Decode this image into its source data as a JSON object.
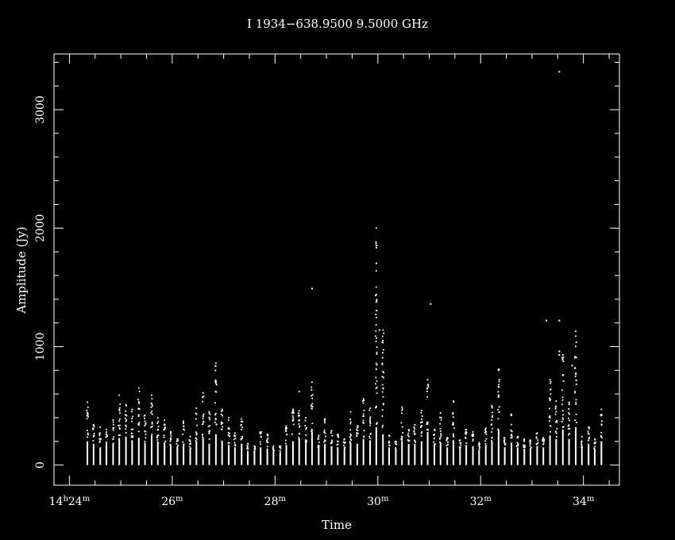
{
  "chart_data": {
    "type": "scatter",
    "title": "I 1934−638.9500  9.5000  GHz",
    "xlabel": "Time",
    "ylabel": "Amplitude (Jy)",
    "x_unit": "minutes after 14h00m",
    "xlim": [
      23.7,
      34.7
    ],
    "ylim": [
      -170,
      3470
    ],
    "grid": false,
    "legend": "none",
    "colors": {
      "background": "#000000",
      "foreground": "#ffffff"
    },
    "x_ticks": [
      {
        "value": 24,
        "label_hour": "14",
        "hour_sup": "h",
        "label_min": "24",
        "min_sup": "m"
      },
      {
        "value": 26,
        "label_hour": "",
        "hour_sup": "",
        "label_min": "26",
        "min_sup": "m"
      },
      {
        "value": 28,
        "label_hour": "",
        "hour_sup": "",
        "label_min": "28",
        "min_sup": "m"
      },
      {
        "value": 30,
        "label_hour": "",
        "hour_sup": "",
        "label_min": "30",
        "min_sup": "m"
      },
      {
        "value": 32,
        "label_hour": "",
        "hour_sup": "",
        "label_min": "32",
        "min_sup": "m"
      },
      {
        "value": 34,
        "label_hour": "",
        "hour_sup": "",
        "label_min": "34",
        "min_sup": "m"
      }
    ],
    "y_ticks": [
      {
        "value": 0,
        "label": "0"
      },
      {
        "value": 1000,
        "label": "1000"
      },
      {
        "value": 2000,
        "label": "2000"
      },
      {
        "value": 3000,
        "label": "3000"
      }
    ],
    "integrations": {
      "times": [
        24.35,
        24.47,
        24.6,
        24.72,
        24.85,
        24.97,
        25.1,
        25.22,
        25.35,
        25.47,
        25.6,
        25.72,
        25.85,
        25.97,
        26.1,
        26.22,
        26.35,
        26.47,
        26.6,
        26.72,
        26.85,
        26.97,
        27.1,
        27.22,
        27.35,
        27.47,
        27.6,
        27.72,
        27.85,
        27.97,
        28.1,
        28.22,
        28.35,
        28.47,
        28.6,
        28.72,
        28.85,
        28.97,
        29.1,
        29.22,
        29.35,
        29.47,
        29.6,
        29.72,
        29.85,
        29.97,
        30.1,
        30.22,
        30.35,
        30.47,
        30.6,
        30.72,
        30.85,
        30.97,
        31.1,
        31.22,
        31.35,
        31.47,
        31.6,
        31.72,
        31.85,
        31.97,
        32.1,
        32.22,
        32.35,
        32.47,
        32.6,
        32.72,
        32.85,
        32.97,
        33.1,
        33.22,
        33.35,
        33.47,
        33.6,
        33.72,
        33.85,
        33.97,
        34.1,
        34.22,
        34.35
      ],
      "max_amplitude": [
        530,
        340,
        320,
        300,
        380,
        590,
        510,
        470,
        650,
        420,
        590,
        400,
        380,
        280,
        220,
        370,
        240,
        480,
        610,
        450,
        860,
        470,
        400,
        270,
        390,
        180,
        160,
        280,
        260,
        160,
        160,
        330,
        470,
        620,
        400,
        700,
        250,
        390,
        290,
        260,
        220,
        450,
        330,
        560,
        480,
        2000,
        1140,
        250,
        200,
        490,
        300,
        340,
        460,
        720,
        300,
        440,
        230,
        540,
        210,
        300,
        280,
        190,
        310,
        500,
        810,
        230,
        430,
        240,
        220,
        210,
        270,
        230,
        720,
        540,
        930,
        530,
        1130,
        240,
        320,
        220,
        470
      ],
      "low_amplitude": [
        200,
        180,
        150,
        190,
        180,
        220,
        240,
        210,
        230,
        190,
        250,
        200,
        190,
        170,
        160,
        170,
        140,
        200,
        230,
        180,
        260,
        200,
        170,
        150,
        180,
        120,
        110,
        150,
        140,
        110,
        100,
        170,
        200,
        220,
        190,
        280,
        150,
        180,
        160,
        150,
        140,
        190,
        180,
        220,
        210,
        300,
        260,
        150,
        140,
        200,
        170,
        180,
        200,
        280,
        170,
        190,
        150,
        210,
        140,
        170,
        160,
        130,
        170,
        200,
        300,
        150,
        190,
        150,
        140,
        140,
        160,
        150,
        250,
        220,
        300,
        220,
        320,
        150,
        180,
        140,
        200
      ],
      "outliers": [
        {
          "t": 33.53,
          "amp": 3320
        },
        {
          "t": 28.72,
          "amp": 1490
        },
        {
          "t": 31.03,
          "amp": 1360
        },
        {
          "t": 33.28,
          "amp": 1220
        },
        {
          "t": 33.53,
          "amp": 1220
        },
        {
          "t": 30.03,
          "amp": 1140
        },
        {
          "t": 33.53,
          "amp": 960
        },
        {
          "t": 33.53,
          "amp": 930
        },
        {
          "t": 33.78,
          "amp": 840
        },
        {
          "t": 29.97,
          "amp": 810
        },
        {
          "t": 32.35,
          "amp": 800
        }
      ]
    }
  }
}
